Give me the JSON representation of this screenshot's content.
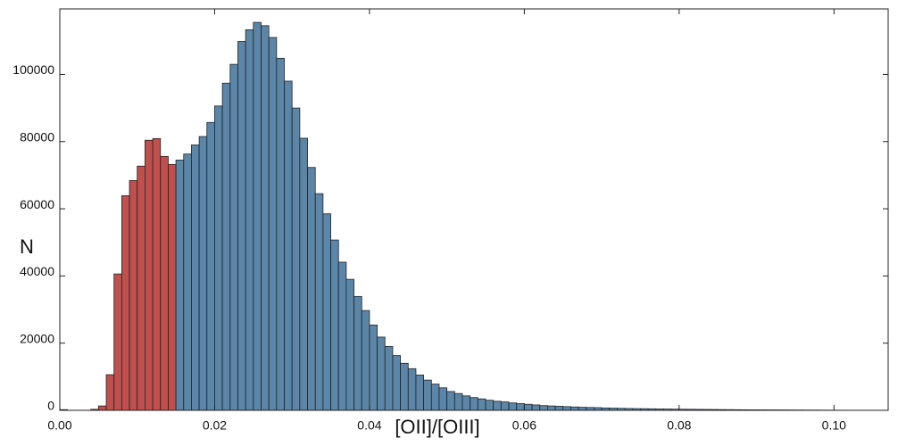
{
  "chart_data": {
    "type": "histogram",
    "xlabel": "[OII]/[OIII]",
    "ylabel": "N",
    "xlim": [
      0,
      0.107
    ],
    "ylim": [
      0,
      119500
    ],
    "xticks": [
      {
        "value": 0,
        "label": "0.00"
      },
      0.02,
      0.04,
      0.06,
      0.08,
      {
        "value": 0.1,
        "label": "0.10"
      }
    ],
    "yticks": [
      0,
      20000,
      40000,
      60000,
      80000,
      100000
    ],
    "series": [
      {
        "color": "#c0504d",
        "bins": [
          0.0,
          0.001,
          0.002,
          0.003,
          0.004,
          0.005,
          0.006,
          0.007,
          0.008,
          0.009,
          0.01,
          0.011,
          0.012,
          0.013,
          0.014,
          0.015
        ],
        "values": [
          200,
          0,
          0,
          0,
          300,
          1300,
          10600,
          40600,
          63900,
          68400,
          72700,
          80400,
          80900,
          75600,
          73200
        ]
      },
      {
        "color": "#5b86a8",
        "bins": [
          0.015,
          0.016,
          0.017,
          0.018,
          0.019,
          0.02,
          0.021,
          0.022,
          0.023,
          0.024,
          0.025,
          0.026,
          0.027,
          0.028,
          0.029,
          0.03,
          0.031,
          0.032,
          0.033,
          0.034,
          0.035,
          0.036,
          0.037,
          0.038,
          0.039,
          0.04,
          0.041,
          0.042,
          0.043,
          0.044,
          0.045,
          0.046,
          0.047,
          0.048,
          0.049,
          0.05,
          0.051,
          0.052,
          0.053,
          0.054,
          0.055,
          0.056,
          0.057,
          0.058,
          0.059,
          0.06,
          0.061,
          0.062,
          0.063,
          0.064,
          0.065,
          0.066,
          0.067,
          0.068,
          0.069,
          0.07,
          0.071,
          0.072,
          0.073,
          0.074,
          0.075,
          0.076,
          0.077,
          0.078,
          0.079,
          0.08,
          0.081,
          0.082,
          0.083,
          0.084,
          0.085,
          0.086,
          0.087,
          0.088,
          0.089,
          0.09,
          0.091,
          0.092,
          0.093,
          0.094,
          0.095,
          0.096,
          0.097,
          0.098,
          0.099,
          0.1,
          0.101,
          0.102,
          0.103,
          0.104,
          0.105,
          0.106
        ],
        "values": [
          74500,
          76300,
          79000,
          81500,
          85700,
          90600,
          97400,
          103000,
          109800,
          113300,
          115500,
          114500,
          111000,
          104800,
          98000,
          90000,
          81000,
          72300,
          64500,
          58500,
          50700,
          44100,
          39000,
          33900,
          29700,
          25400,
          21800,
          19000,
          16300,
          14000,
          12400,
          10500,
          9000,
          7800,
          6700,
          5600,
          5000,
          4300,
          3800,
          3400,
          3000,
          2700,
          2500,
          2200,
          2000,
          1800,
          1600,
          1400,
          1300,
          1200,
          1100,
          1000,
          900,
          850,
          800,
          700,
          650,
          600,
          550,
          500,
          480,
          450,
          400,
          380,
          350,
          320,
          300,
          280,
          260,
          240,
          220,
          200,
          180,
          160,
          150,
          140,
          130,
          120,
          110,
          100,
          90,
          80,
          70,
          60,
          50,
          40,
          30,
          20,
          10,
          10,
          10
        ]
      }
    ]
  }
}
